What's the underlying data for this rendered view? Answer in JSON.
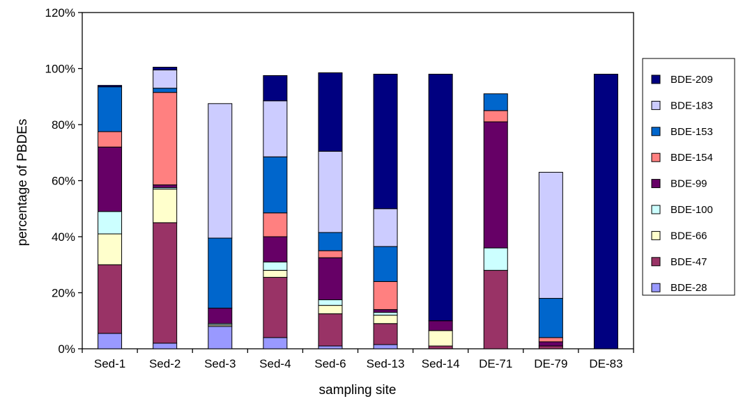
{
  "chart_data": {
    "type": "bar",
    "stacked": true,
    "xlabel": "sampling site",
    "ylabel": "percentage of PBDEs",
    "ylim": [
      0,
      120
    ],
    "yticks": [
      "0%",
      "20%",
      "40%",
      "60%",
      "80%",
      "100%",
      "120%"
    ],
    "grid": false,
    "legend_position": "right",
    "categories": [
      "Sed-1",
      "Sed-2",
      "Sed-3",
      "Sed-4",
      "Sed-6",
      "Sed-13",
      "Sed-14",
      "DE-71",
      "DE-79",
      "DE-83"
    ],
    "series": [
      {
        "name": "BDE-28",
        "color": "#9999ff",
        "values": [
          5.5,
          2.0,
          8.0,
          4.0,
          1.0,
          1.5,
          0.0,
          0.0,
          0.0,
          0.0
        ]
      },
      {
        "name": "BDE-47",
        "color": "#993366",
        "values": [
          24.5,
          43.0,
          0.0,
          21.5,
          11.5,
          7.5,
          1.0,
          28.0,
          1.0,
          0.0
        ]
      },
      {
        "name": "BDE-66",
        "color": "#ffffcc",
        "values": [
          11.0,
          12.0,
          0.5,
          2.5,
          3.0,
          3.0,
          5.5,
          0.0,
          0.0,
          0.0
        ]
      },
      {
        "name": "BDE-100",
        "color": "#ccffff",
        "values": [
          8.0,
          0.5,
          0.5,
          3.0,
          2.0,
          1.0,
          0.0,
          8.0,
          0.0,
          0.0
        ]
      },
      {
        "name": "BDE-99",
        "color": "#660066",
        "values": [
          23.0,
          1.0,
          5.5,
          9.0,
          15.0,
          1.0,
          3.5,
          45.0,
          1.5,
          0.0
        ]
      },
      {
        "name": "BDE-154",
        "color": "#ff8080",
        "values": [
          5.5,
          33.0,
          0.0,
          8.5,
          2.5,
          10.0,
          0.0,
          4.0,
          1.5,
          0.0
        ]
      },
      {
        "name": "BDE-153",
        "color": "#0066cc",
        "values": [
          16.0,
          1.5,
          25.0,
          20.0,
          6.5,
          12.5,
          0.0,
          6.0,
          14.0,
          0.0
        ]
      },
      {
        "name": "BDE-183",
        "color": "#ccccff",
        "values": [
          0.0,
          6.5,
          48.0,
          20.0,
          29.0,
          13.5,
          0.0,
          0.0,
          45.0,
          0.0
        ]
      },
      {
        "name": "BDE-209",
        "color": "#000080",
        "values": [
          0.5,
          1.0,
          0.0,
          9.0,
          28.0,
          48.0,
          88.0,
          0.0,
          0.0,
          98.0
        ]
      }
    ]
  }
}
